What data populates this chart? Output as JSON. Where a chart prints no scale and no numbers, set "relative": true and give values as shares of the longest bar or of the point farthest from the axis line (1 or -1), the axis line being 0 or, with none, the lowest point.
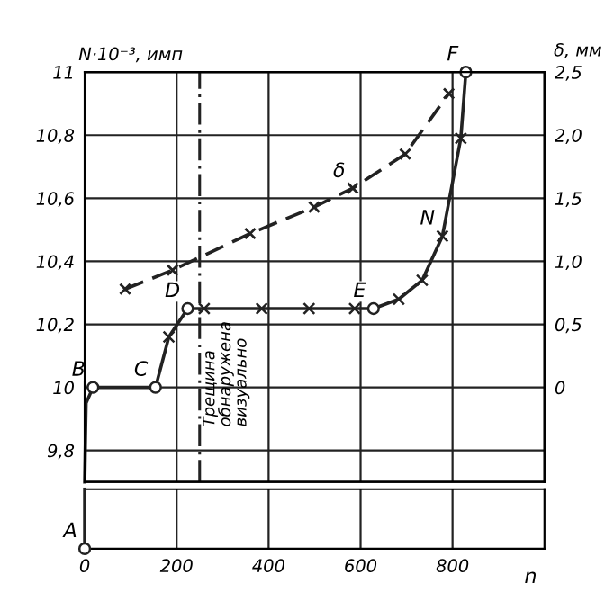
{
  "chart_data": [
    {
      "type": "line",
      "ylabel": "N·10⁻³, имп",
      "y2label": "δ, мм",
      "xlim": [
        0,
        1000
      ],
      "xticks": [
        0,
        200,
        400,
        600,
        800
      ],
      "ylim": [
        9.7,
        11
      ],
      "yticks": [
        {
          "value": 9.8,
          "label": "9,8"
        },
        10,
        {
          "value": 10.2,
          "label": "10,2"
        },
        {
          "value": 10.4,
          "label": "10,4"
        },
        {
          "value": 10.6,
          "label": "10,6"
        },
        {
          "value": 10.8,
          "label": "10,8"
        },
        11
      ],
      "y2lim": [
        -0.75,
        2.5
      ],
      "y2ticks": [
        0,
        {
          "value": 0.5,
          "label": "0,5"
        },
        {
          "value": 1.0,
          "label": "1,0"
        },
        {
          "value": 1.5,
          "label": "1,5"
        },
        {
          "value": 2.0,
          "label": "2,0"
        },
        {
          "value": 2.5,
          "label": "2,5"
        }
      ],
      "grid": true,
      "tick_labels": "y",
      "series": [
        {
          "color": "#222222",
          "line_style": "solid",
          "marker": "none",
          "x": [
            0,
            3,
            18,
            154,
            183,
            224,
            260,
            385,
            488,
            587,
            628,
            683,
            734,
            778,
            818,
            829
          ],
          "values": [
            9.7,
            9.95,
            10.0,
            10.0,
            10.16,
            10.25,
            10.25,
            10.25,
            10.25,
            10.25,
            10.25,
            10.28,
            10.34,
            10.48,
            10.79,
            11.0
          ]
        },
        {
          "type": "scatter",
          "color": "#222222",
          "marker": "cross",
          "x": [
            183,
            260,
            385,
            488,
            587,
            683,
            734,
            778,
            818
          ],
          "values": [
            10.16,
            10.25,
            10.25,
            10.25,
            10.25,
            10.28,
            10.34,
            10.48,
            10.79
          ]
        },
        {
          "type": "scatter",
          "color": "#222222",
          "marker": "circle",
          "x": [
            18,
            154,
            224,
            628,
            829
          ],
          "values": [
            10.0,
            10.0,
            10.25,
            10.25,
            11.0
          ]
        },
        {
          "axis": "y2",
          "color": "#222222",
          "line_style": "dashed",
          "marker": "cross",
          "x": [
            88,
            191,
            360,
            499,
            583,
            697,
            792
          ],
          "values": [
            0.78,
            0.93,
            1.22,
            1.43,
            1.58,
            1.85,
            2.33
          ]
        }
      ],
      "ref_lines": [
        {
          "axis": "x",
          "value": 250,
          "label": "Трещина обнаружена визуально",
          "line_style": "dashed",
          "color": "#222222"
        }
      ],
      "annotations": [
        {
          "text": "B",
          "x": 18,
          "y": 10.0
        },
        {
          "text": "C",
          "x": 154,
          "y": 10.0
        },
        {
          "text": "D",
          "x": 224,
          "y": 10.25
        },
        {
          "text": "E",
          "x": 628,
          "y": 10.25
        },
        {
          "text": "F",
          "x": 829,
          "y": 11.0
        },
        {
          "text": "N",
          "x": 778,
          "y": 10.48
        },
        {
          "text": "δ",
          "x": 583,
          "y": 10.63
        }
      ]
    },
    {
      "type": "line",
      "relative": true,
      "xlabel": "n",
      "xlim": [
        0,
        1000
      ],
      "xticks": [
        0,
        200,
        400,
        600,
        800
      ],
      "grid": "x",
      "tick_labels": "x",
      "series": [
        {
          "color": "#222222",
          "marker": "none",
          "line_style": "solid",
          "x": [
            0,
            0
          ],
          "values": [
            0,
            1
          ]
        },
        {
          "type": "scatter",
          "color": "#222222",
          "marker": "circle",
          "x": [
            0
          ],
          "values": [
            0
          ]
        }
      ],
      "annotations": [
        {
          "text": "A",
          "x": 0,
          "y": 0
        }
      ]
    }
  ]
}
